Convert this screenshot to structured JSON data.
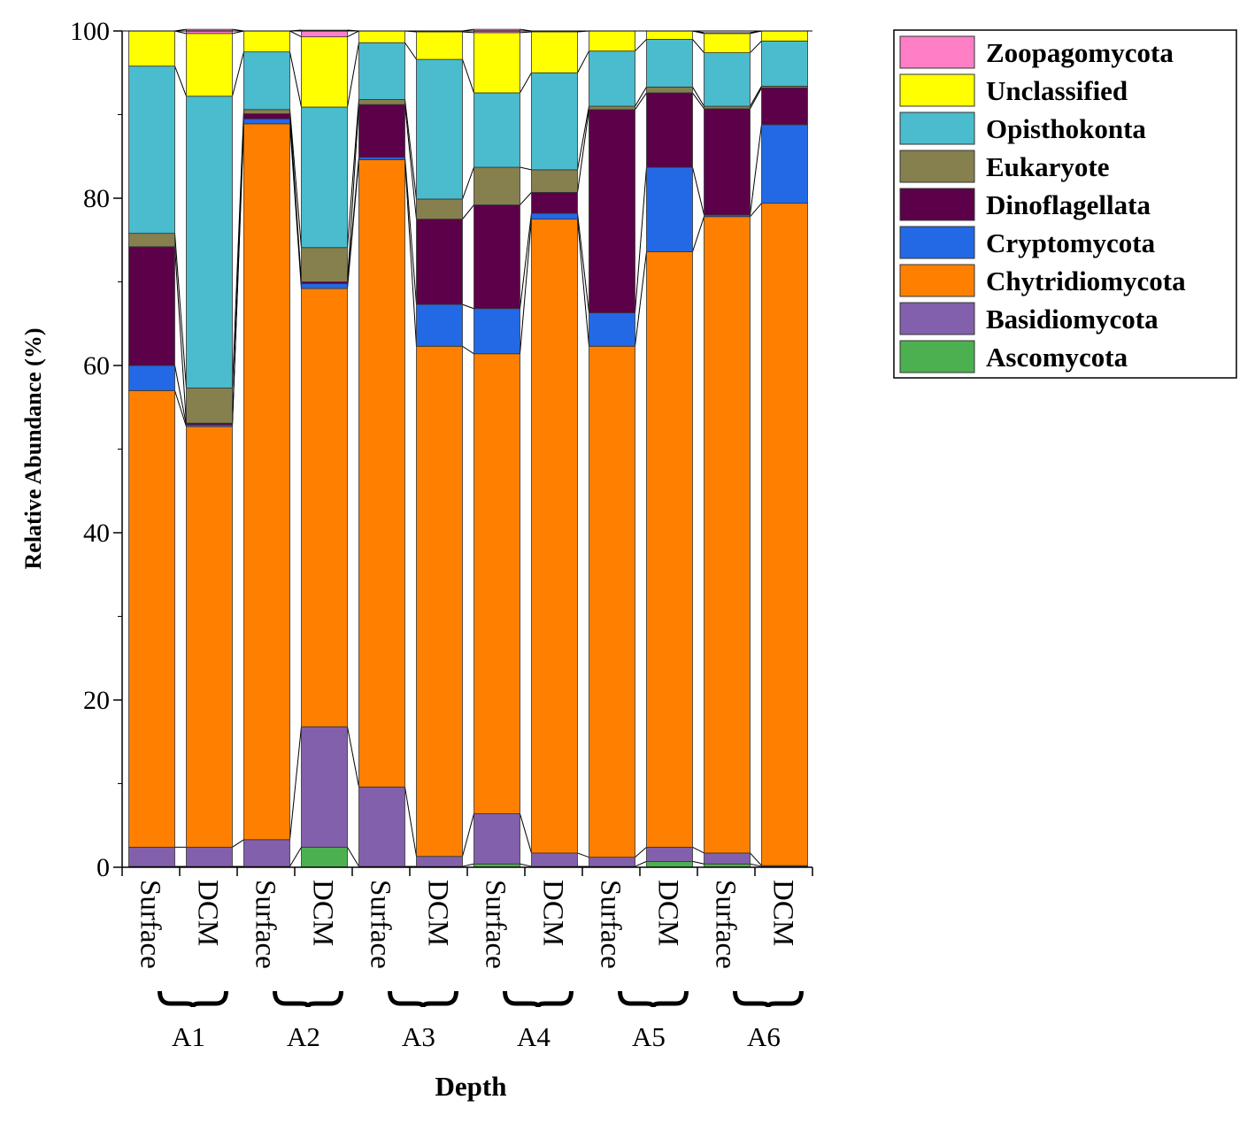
{
  "chart_data": {
    "type": "bar",
    "stacked": true,
    "title": "",
    "xlabel": "Depth",
    "ylabel": "Relative Abundance (%)",
    "ylim": [
      0,
      100
    ],
    "yticks": [
      0,
      20,
      40,
      60,
      80,
      100
    ],
    "categories": [
      "Surface",
      "DCM",
      "Surface",
      "DCM",
      "Surface",
      "DCM",
      "Surface",
      "DCM",
      "Surface",
      "DCM",
      "Surface",
      "DCM"
    ],
    "groups": [
      {
        "label": "A1",
        "start": 0,
        "end": 1
      },
      {
        "label": "A2",
        "start": 2,
        "end": 3
      },
      {
        "label": "A3",
        "start": 4,
        "end": 5
      },
      {
        "label": "A4",
        "start": 6,
        "end": 7
      },
      {
        "label": "A5",
        "start": 8,
        "end": 9
      },
      {
        "label": "A6",
        "start": 10,
        "end": 11
      }
    ],
    "legend_position": "top-right",
    "series": [
      {
        "name": "Ascomycota",
        "color": "#4CB050",
        "values": [
          0.1,
          0.1,
          0.1,
          2.4,
          0.1,
          0.1,
          0.4,
          0.1,
          0.1,
          0.7,
          0.4,
          0.1
        ]
      },
      {
        "name": "Basidiomycota",
        "color": "#8360AC",
        "values": [
          2.3,
          2.3,
          3.2,
          14.4,
          9.5,
          1.2,
          6.0,
          1.6,
          1.1,
          1.7,
          1.3,
          0.1
        ]
      },
      {
        "name": "Chytridiomycota",
        "color": "#FF8000",
        "values": [
          54.6,
          50.3,
          85.6,
          52.4,
          75.0,
          61.0,
          55.0,
          75.8,
          61.1,
          71.2,
          76.1,
          79.2
        ]
      },
      {
        "name": "Cryptomycota",
        "color": "#2369E6",
        "values": [
          3.0,
          0.2,
          0.6,
          0.6,
          0.3,
          5.0,
          5.4,
          0.7,
          4.0,
          10.1,
          0.2,
          9.4
        ]
      },
      {
        "name": "Dinoflagellata",
        "color": "#5C004A",
        "values": [
          14.2,
          0.2,
          0.6,
          0.2,
          6.3,
          10.2,
          12.4,
          2.5,
          24.3,
          8.9,
          12.7,
          4.4
        ]
      },
      {
        "name": "Eukaryote",
        "color": "#86804F",
        "values": [
          1.6,
          4.2,
          0.5,
          4.1,
          0.6,
          2.4,
          4.5,
          2.7,
          0.4,
          0.7,
          0.3,
          0.2
        ]
      },
      {
        "name": "Opisthokonta",
        "color": "#4ABCCD",
        "values": [
          20.0,
          34.9,
          6.9,
          16.8,
          6.8,
          16.7,
          8.9,
          11.6,
          6.6,
          5.7,
          6.4,
          5.4
        ]
      },
      {
        "name": "Unclassified",
        "color": "#FFFF00",
        "values": [
          4.2,
          7.5,
          2.5,
          8.4,
          1.4,
          3.3,
          7.2,
          4.9,
          2.4,
          1.0,
          2.3,
          1.2
        ]
      },
      {
        "name": "Zoopagomycota",
        "color": "#FF7FC7",
        "values": [
          0.0,
          0.5,
          0.0,
          0.8,
          0.0,
          0.1,
          0.4,
          0.1,
          0.0,
          0.0,
          0.1,
          0.0
        ]
      }
    ],
    "legend_order": [
      "Zoopagomycota",
      "Unclassified",
      "Opisthokonta",
      "Eukaryote",
      "Dinoflagellata",
      "Cryptomycota",
      "Chytridiomycota",
      "Basidiomycota",
      "Ascomycota"
    ]
  }
}
